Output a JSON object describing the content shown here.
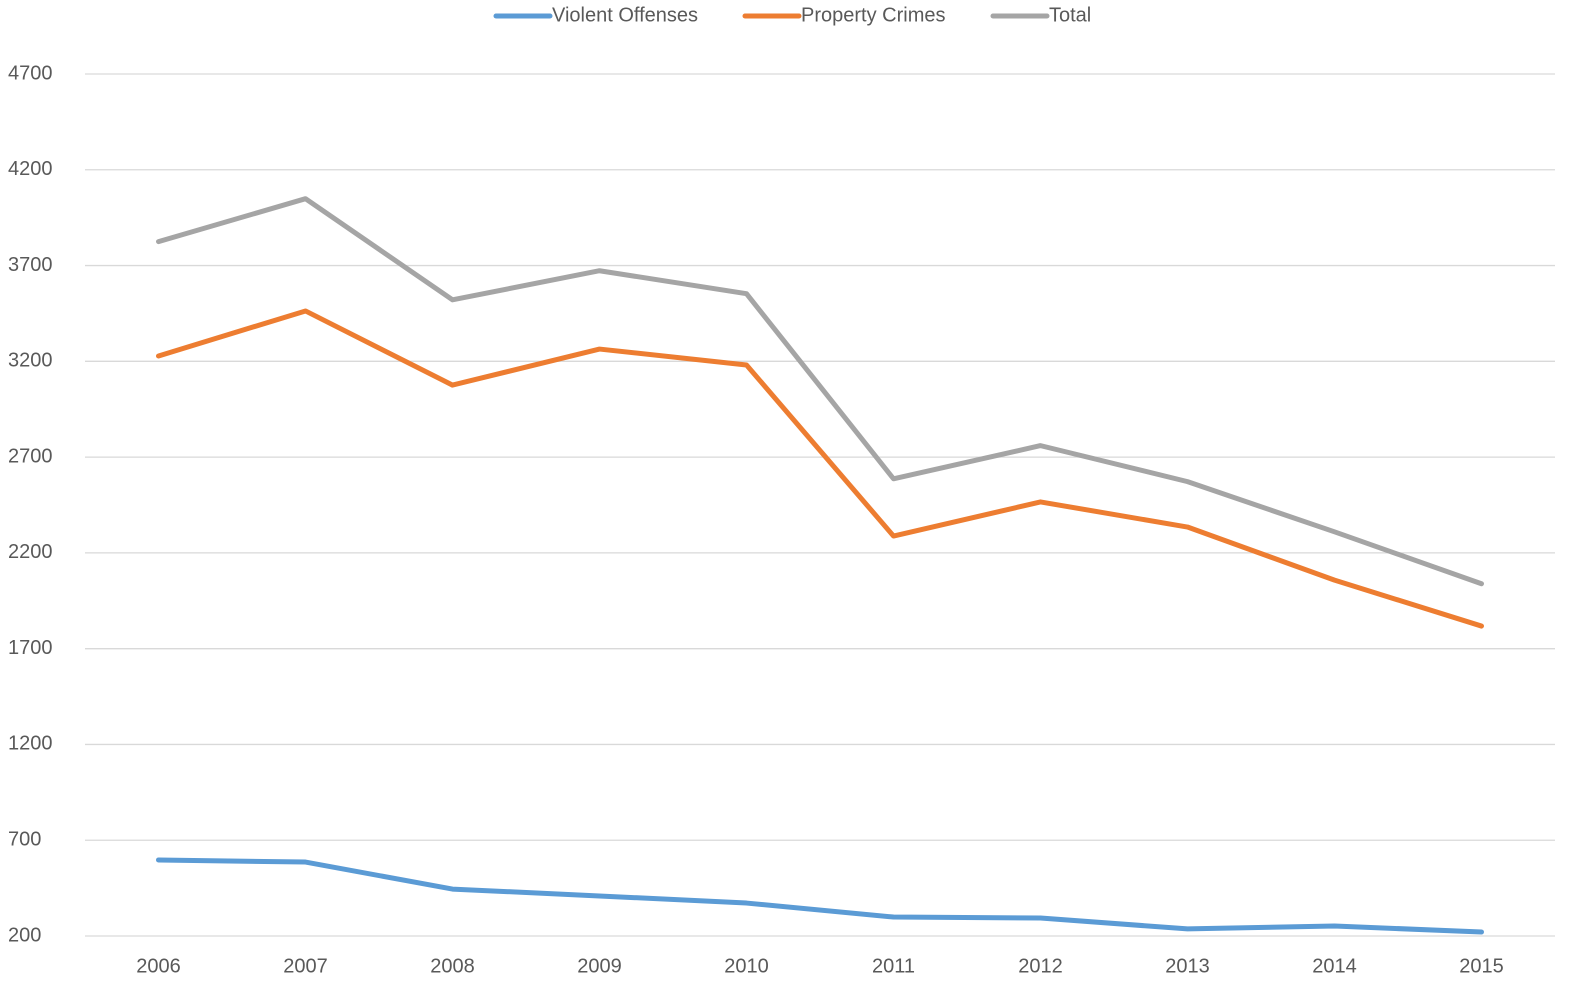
{
  "chart_data": {
    "type": "line",
    "categories": [
      "2006",
      "2007",
      "2008",
      "2009",
      "2010",
      "2011",
      "2012",
      "2013",
      "2014",
      "2015"
    ],
    "series": [
      {
        "name": "Violent Offenses",
        "color": "#5b9bd5",
        "values": [
          597,
          586,
          445,
          409,
          372,
          299,
          294,
          237,
          252,
          221
        ]
      },
      {
        "name": "Property Crimes",
        "color": "#ed7d31",
        "values": [
          3228,
          3463,
          3076,
          3264,
          3181,
          2288,
          2466,
          2335,
          2058,
          1818
        ]
      },
      {
        "name": "Total",
        "color": "#a5a5a5",
        "values": [
          3825,
          4049,
          3521,
          3673,
          3553,
          2587,
          2760,
          2572,
          2310,
          2039
        ]
      }
    ],
    "ylim": [
      200,
      4700
    ],
    "yticks": [
      200,
      700,
      1200,
      1700,
      2200,
      2700,
      3200,
      3700,
      4200,
      4700
    ],
    "grid": true,
    "legend": "top"
  }
}
